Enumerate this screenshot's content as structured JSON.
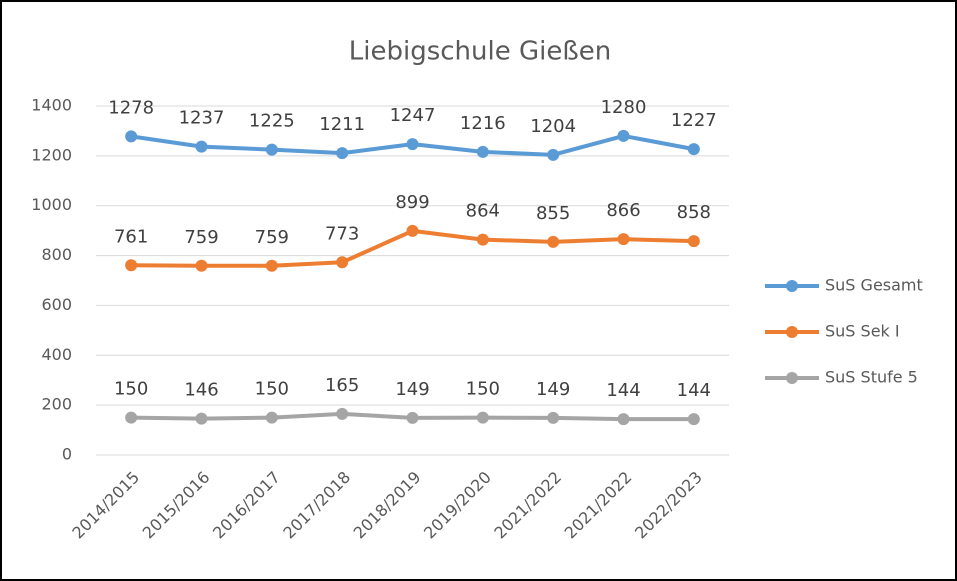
{
  "chart_data": {
    "type": "line",
    "title": "Liebigschule Gießen",
    "categories": [
      "2014/2015",
      "2015/2016",
      "2016/2017",
      "2017/2018",
      "2018/2019",
      "2019/2020",
      "2021/2022",
      "2021/2022",
      "2022/2023"
    ],
    "series": [
      {
        "name": "SuS Gesamt",
        "color": "#5b9bd5",
        "values": [
          1278,
          1237,
          1225,
          1211,
          1247,
          1216,
          1204,
          1280,
          1227
        ]
      },
      {
        "name": "SuS Sek I",
        "color": "#ed7d31",
        "values": [
          761,
          759,
          759,
          773,
          899,
          864,
          855,
          866,
          858
        ]
      },
      {
        "name": "SuS Stufe 5",
        "color": "#a5a5a5",
        "values": [
          150,
          146,
          150,
          165,
          149,
          150,
          149,
          144,
          144
        ]
      }
    ],
    "ylim": [
      0,
      1400
    ],
    "yticks": [
      0,
      200,
      400,
      600,
      800,
      1000,
      1200,
      1400
    ],
    "grid": true,
    "legend": "right"
  }
}
